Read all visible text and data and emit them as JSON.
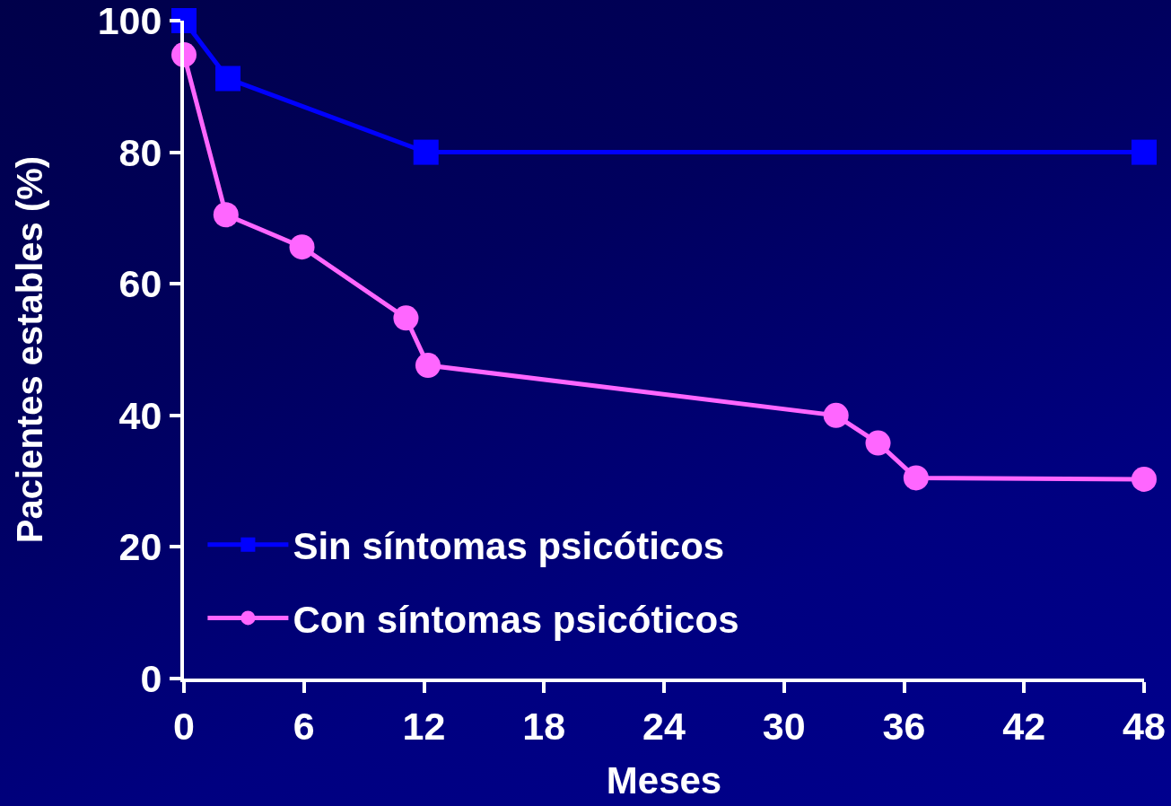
{
  "chart_data": {
    "type": "line",
    "xlabel": "Meses",
    "ylabel": "Pacientes estables (%)",
    "series": [
      {
        "name": "Sin síntomas psicóticos",
        "color": "#0000ff",
        "marker": "square",
        "x": [
          0,
          2.2,
          12.1,
          48
        ],
        "values": [
          100,
          91.2,
          80,
          80
        ]
      },
      {
        "name": "Con síntomas psicóticos",
        "color": "#ff66ff",
        "marker": "circle",
        "x": [
          0,
          2.1,
          5.9,
          11.1,
          12.2,
          32.6,
          34.7,
          36.6,
          48
        ],
        "values": [
          94.8,
          70.5,
          65.6,
          54.8,
          47.6,
          40,
          35.8,
          30.5,
          30.3
        ]
      }
    ],
    "xlim": [
      0,
      48
    ],
    "xticks": [
      0,
      6,
      12,
      18,
      24,
      30,
      36,
      42,
      48
    ],
    "ylim": [
      0,
      100
    ],
    "yticks": [
      0,
      20,
      40,
      60,
      80,
      100
    ],
    "legend": "bottom left"
  }
}
